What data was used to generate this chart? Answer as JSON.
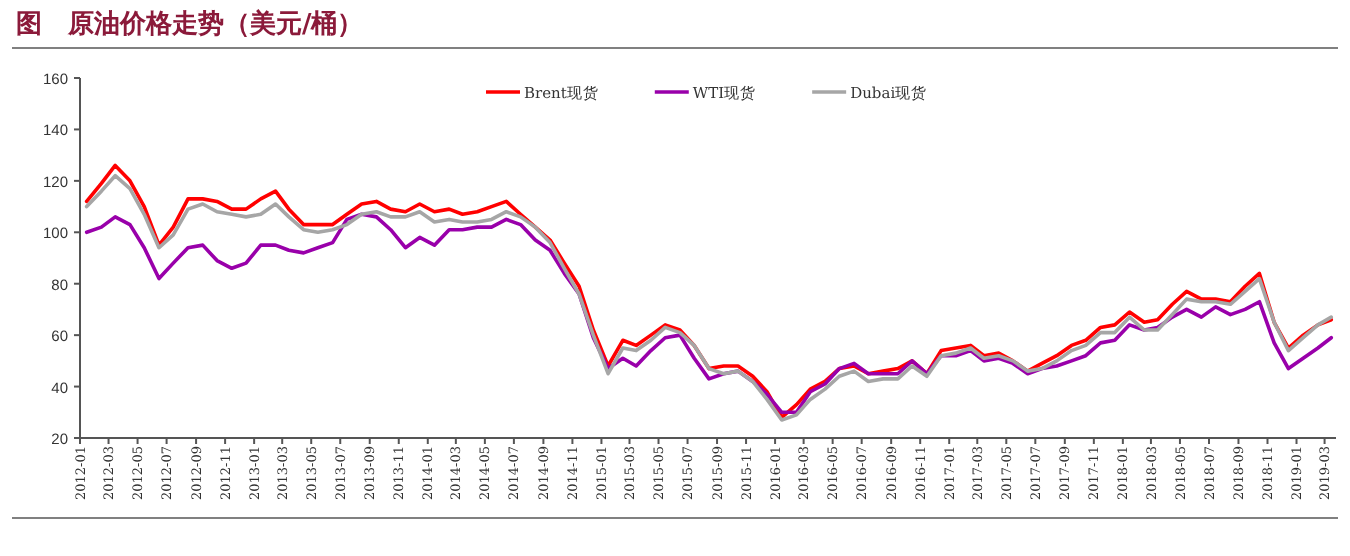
{
  "chart_data": {
    "type": "line",
    "title": "图　原油价格走势（美元/桶）",
    "x": [
      "2012-01-15",
      "2012-02-15",
      "2012-03-15",
      "2012-04-15",
      "2012-05-15",
      "2012-06-15",
      "2012-07-15",
      "2012-08-15",
      "2012-09-15",
      "2012-10-15",
      "2012-11-15",
      "2012-12-15",
      "2013-01-15",
      "2013-02-15",
      "2013-03-15",
      "2013-04-15",
      "2013-05-15",
      "2013-06-15",
      "2013-07-15",
      "2013-08-15",
      "2013-09-15",
      "2013-10-15",
      "2013-11-15",
      "2013-12-15",
      "2014-01-15",
      "2014-02-15",
      "2014-03-15",
      "2014-04-15",
      "2014-05-15",
      "2014-06-15",
      "2014-07-15",
      "2014-08-15",
      "2014-09-15",
      "2014-10-15",
      "2014-11-15",
      "2014-12-15",
      "2015-01-15",
      "2015-02-15",
      "2015-03-15",
      "2015-04-15",
      "2015-05-15",
      "2015-06-15",
      "2015-07-15",
      "2015-08-15",
      "2015-09-15",
      "2015-10-15",
      "2015-11-15",
      "2015-12-15",
      "2016-01-15",
      "2016-02-15",
      "2016-03-15",
      "2016-04-15",
      "2016-05-15",
      "2016-06-15",
      "2016-07-15",
      "2016-08-15",
      "2016-09-15",
      "2016-10-15",
      "2016-11-15",
      "2016-12-15",
      "2017-01-15",
      "2017-02-15",
      "2017-03-15",
      "2017-04-15",
      "2017-05-15",
      "2017-06-15",
      "2017-07-15",
      "2017-08-15",
      "2017-09-15",
      "2017-10-15",
      "2017-11-15",
      "2017-12-15",
      "2018-01-15",
      "2018-02-15",
      "2018-03-15",
      "2018-04-15",
      "2018-05-15",
      "2018-06-15",
      "2018-07-15",
      "2018-08-15",
      "2018-09-15",
      "2018-10-15",
      "2018-11-15",
      "2018-12-15",
      "2019-01-15",
      "2019-02-15",
      "2019-03-15"
    ],
    "series": [
      {
        "name": "Brent现货",
        "color": "#ff0000",
        "values": [
          112,
          119,
          126,
          120,
          110,
          95,
          102,
          113,
          113,
          112,
          109,
          109,
          113,
          116,
          109,
          103,
          103,
          103,
          107,
          111,
          112,
          109,
          108,
          111,
          108,
          109,
          107,
          108,
          110,
          112,
          107,
          102,
          97,
          88,
          79,
          62,
          48,
          58,
          56,
          60,
          64,
          62,
          56,
          47,
          48,
          48,
          44,
          38,
          28,
          33,
          39,
          42,
          47,
          48,
          45,
          46,
          47,
          50,
          45,
          54,
          55,
          56,
          52,
          53,
          50,
          46,
          49,
          52,
          56,
          58,
          63,
          64,
          69,
          65,
          66,
          72,
          77,
          74,
          74,
          73,
          79,
          84,
          65,
          55,
          60,
          64,
          66
        ]
      },
      {
        "name": "WTI现货",
        "color": "#9900aa",
        "values": [
          100,
          102,
          106,
          103,
          94,
          82,
          88,
          94,
          95,
          89,
          86,
          88,
          95,
          95,
          93,
          92,
          94,
          96,
          105,
          107,
          106,
          101,
          94,
          98,
          95,
          101,
          101,
          102,
          102,
          105,
          103,
          97,
          93,
          84,
          76,
          59,
          47,
          51,
          48,
          54,
          59,
          60,
          51,
          43,
          45,
          46,
          42,
          37,
          30,
          30,
          38,
          41,
          47,
          49,
          45,
          45,
          45,
          50,
          45,
          52,
          52,
          54,
          50,
          51,
          49,
          45,
          47,
          48,
          50,
          52,
          57,
          58,
          64,
          62,
          63,
          67,
          70,
          67,
          71,
          68,
          70,
          73,
          57,
          47,
          51,
          55,
          59
        ]
      },
      {
        "name": "Dubai现货",
        "color": "#a6a6a6",
        "values": [
          110,
          116,
          122,
          117,
          107,
          94,
          99,
          109,
          111,
          108,
          107,
          106,
          107,
          111,
          106,
          101,
          100,
          101,
          103,
          107,
          108,
          106,
          106,
          108,
          104,
          105,
          104,
          104,
          105,
          108,
          106,
          102,
          96,
          86,
          76,
          60,
          45,
          55,
          54,
          58,
          63,
          61,
          56,
          47,
          45,
          46,
          42,
          35,
          27,
          29,
          35,
          39,
          44,
          46,
          42,
          43,
          43,
          48,
          44,
          52,
          53,
          55,
          51,
          52,
          50,
          46,
          47,
          50,
          54,
          56,
          61,
          61,
          67,
          62,
          62,
          68,
          74,
          73,
          73,
          72,
          77,
          82,
          65,
          54,
          59,
          64,
          67
        ]
      }
    ],
    "xlim": [
      "2012-01-01",
      "2019-03-25"
    ],
    "xticks": [
      "2012-01",
      "2012-03",
      "2012-05",
      "2012-07",
      "2012-09",
      "2012-11",
      "2013-01",
      "2013-03",
      "2013-05",
      "2013-07",
      "2013-09",
      "2013-11",
      "2014-01",
      "2014-03",
      "2014-05",
      "2014-07",
      "2014-09",
      "2014-11",
      "2015-01",
      "2015-03",
      "2015-05",
      "2015-07",
      "2015-09",
      "2015-11",
      "2016-01",
      "2016-03",
      "2016-05",
      "2016-07",
      "2016-09",
      "2016-11",
      "2017-01",
      "2017-03",
      "2017-05",
      "2017-07",
      "2017-09",
      "2017-11",
      "2018-01",
      "2018-03",
      "2018-05",
      "2018-07",
      "2018-09",
      "2018-11",
      "2019-01",
      "2019-03"
    ],
    "ylim": [
      20,
      160
    ],
    "yticks": [
      20,
      40,
      60,
      80,
      100,
      120,
      140,
      160
    ],
    "legend": "top",
    "grid": false,
    "marker": "none",
    "line_style": "solid"
  }
}
